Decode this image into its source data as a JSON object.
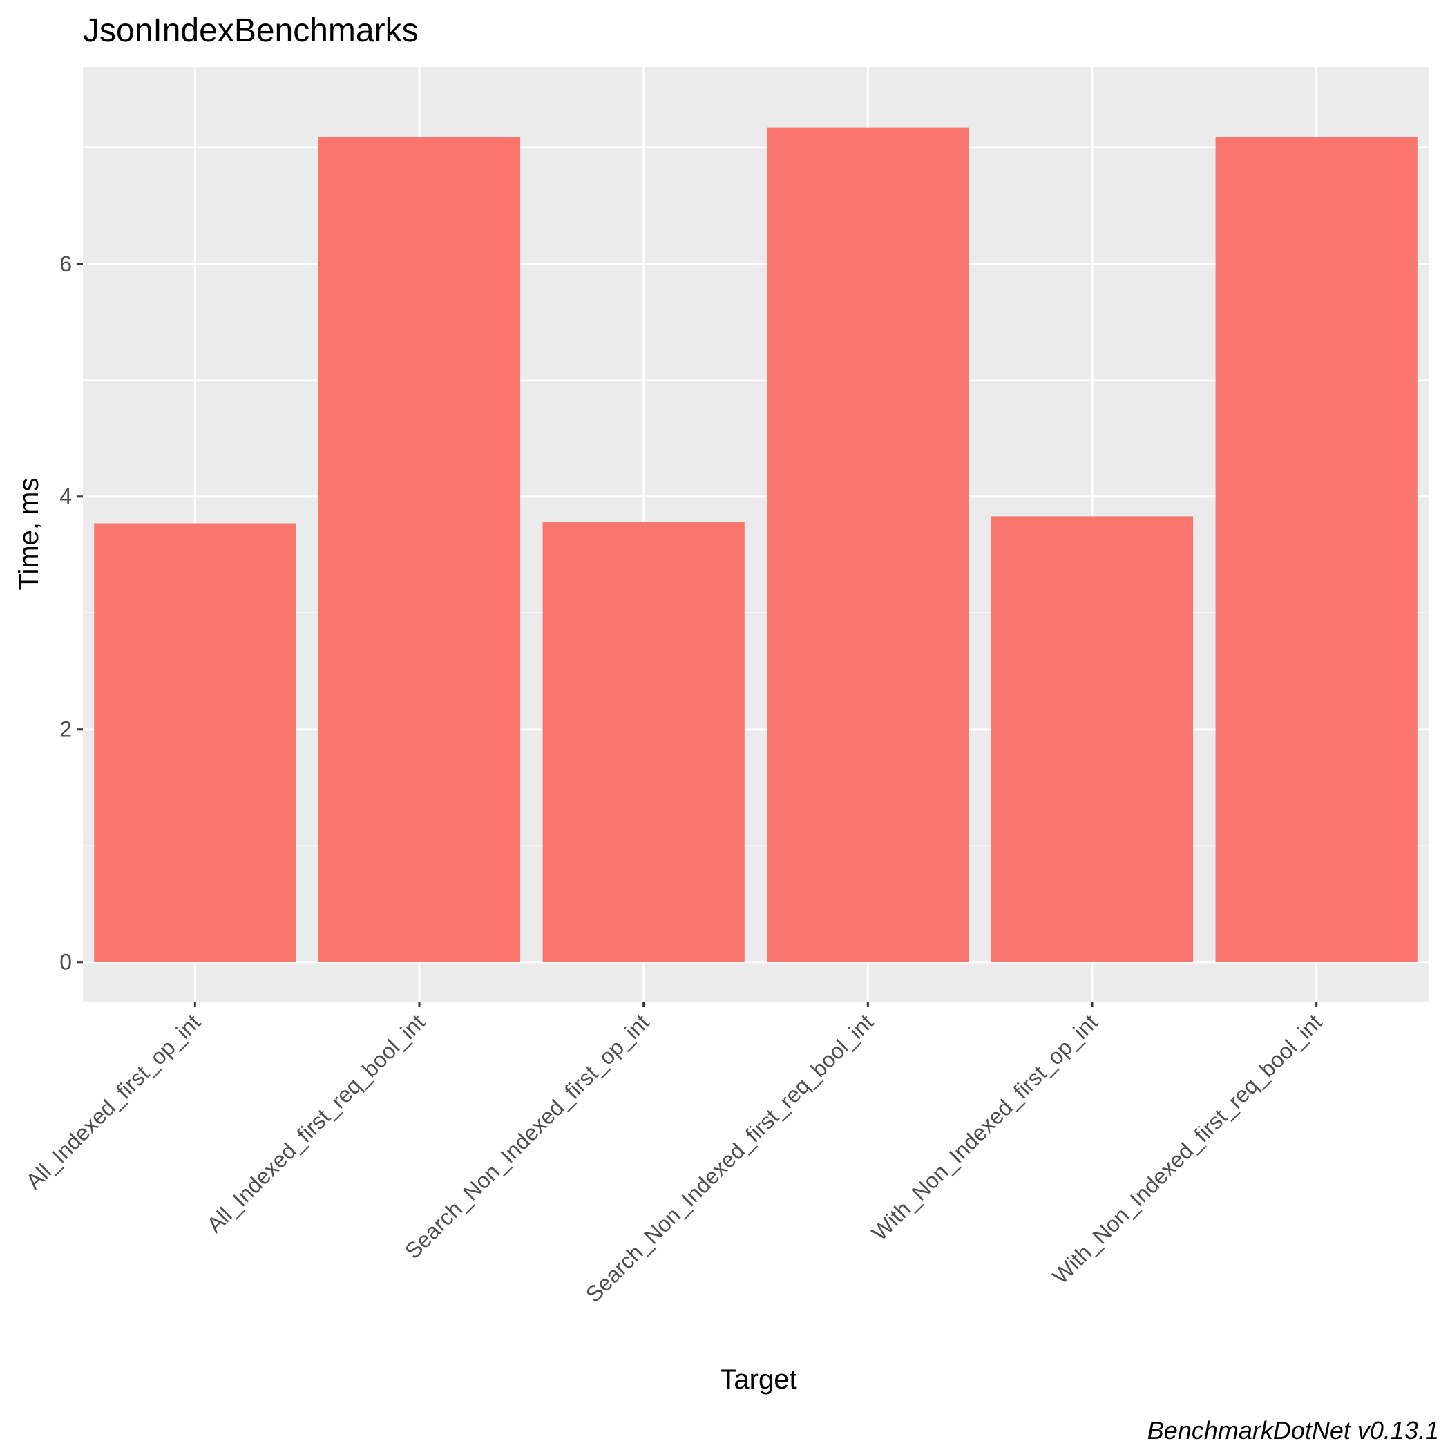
{
  "chart_data": {
    "type": "bar",
    "title": "JsonIndexBenchmarks",
    "xlabel": "Target",
    "ylabel": "Time, ms",
    "caption": "BenchmarkDotNet v0.13.1",
    "categories": [
      "All_Indexed_first_op_int",
      "All_Indexed_first_req_bool_int",
      "Search_Non_Indexed_first_op_int",
      "Search_Non_Indexed_first_req_bool_int",
      "With_Non_Indexed_first_op_int",
      "With_Non_Indexed_first_req_bool_int"
    ],
    "values": [
      3.77,
      7.09,
      3.78,
      7.17,
      3.83,
      7.09
    ],
    "ylim": [
      -0.34,
      7.69
    ],
    "yticks": [
      0,
      2,
      4,
      6
    ],
    "ytick_labels": [
      "0",
      "2",
      "4",
      "6"
    ],
    "ygrid_minor": [
      1,
      3,
      5,
      7
    ],
    "grid": true,
    "legend": "none",
    "colors": {
      "bar": "#F8766D",
      "panel": "#EBEBEB",
      "grid": "#FFFFFF",
      "tick_text": "#4D4D4D",
      "tick_mark": "#333333"
    }
  }
}
